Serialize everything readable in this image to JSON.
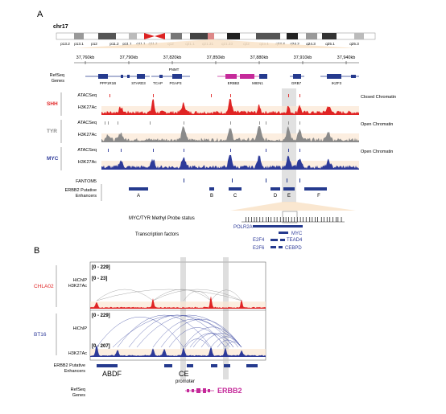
{
  "panel_a": {
    "label": "A",
    "chromosome": "chr17",
    "bands": [
      "p13.2",
      "p13.1",
      "p12",
      "p11.2",
      "p11.1",
      "q11.1",
      "q11.2",
      "q12",
      "q21.1",
      "q21.31",
      "q21.33",
      "q22",
      "q23.1",
      "q23.3",
      "q24.2",
      "q24.3",
      "q25.1",
      "q25.3"
    ],
    "coords": [
      "37,760kb",
      "37,790kb",
      "37,820kb",
      "37,850kb",
      "37,880kb",
      "37,910kb",
      "37,940kb"
    ],
    "refseq_label": [
      "RefSeq",
      "Genes"
    ],
    "genes": [
      "PNMT",
      "PPP1R1B",
      "STARD3",
      "TCAP",
      "PGAP3",
      "ERBB2",
      "MIEN1",
      "GRB7",
      "IKZF3"
    ],
    "groups": [
      {
        "name": "SHH",
        "color": "#e02424",
        "tracks": [
          "ATACSeq",
          "H3K27Ac"
        ],
        "status": "Closed Chromatin"
      },
      {
        "name": "TYR",
        "color": "#8a8a8a",
        "tracks": [
          "ATACSeq",
          "H3K27Ac"
        ],
        "status": "Open Chromatin"
      },
      {
        "name": "MYC",
        "color": "#2d3a99",
        "tracks": [
          "ATACSeq",
          "H3K27Ac"
        ],
        "status": "Open Chromatin"
      }
    ],
    "fantom_label": "FANTOM5",
    "enhancer_label": [
      "ERBB2 Putative",
      "Enhancers"
    ],
    "enhancers": [
      "A",
      "B",
      "C",
      "D",
      "E",
      "F"
    ],
    "methyl_label": "MYC/TYR Methyl Probe status",
    "tf_label": "Transcription factors",
    "tfs": [
      "POLR2A",
      "MYC",
      "E2F4",
      "TEAD4",
      "E2F6",
      "CEBPD"
    ]
  },
  "panel_b": {
    "label": "B",
    "samples": [
      {
        "name": "CHLA02",
        "color": "#e02424",
        "hichip_label": "HiChIP",
        "hichip_range": "[0 - 229]",
        "h3_label": "H3K27Ac",
        "h3_range": "[0 - 23]"
      },
      {
        "name": "BT16",
        "color": "#2d3a99",
        "hichip_label": "HiChIP",
        "hichip_range": "[0 - 229]",
        "h3_label": "H3K27Ac",
        "h3_range": "[0 - 207]"
      }
    ],
    "enhancer_label": [
      "ERBB2 Putative",
      "Enhancers"
    ],
    "enh_groups": [
      "ABDF",
      "CE"
    ],
    "promoter": "promoter",
    "refseq_label": [
      "RefSeq",
      "Genes"
    ],
    "gene": "ERBB2"
  },
  "colors": {
    "red": "#e02424",
    "gray": "#8a8a8a",
    "blue": "#2d3a99",
    "magenta": "#c52a9a",
    "peach": "#f8dcc0",
    "navy": "#253a8e"
  }
}
